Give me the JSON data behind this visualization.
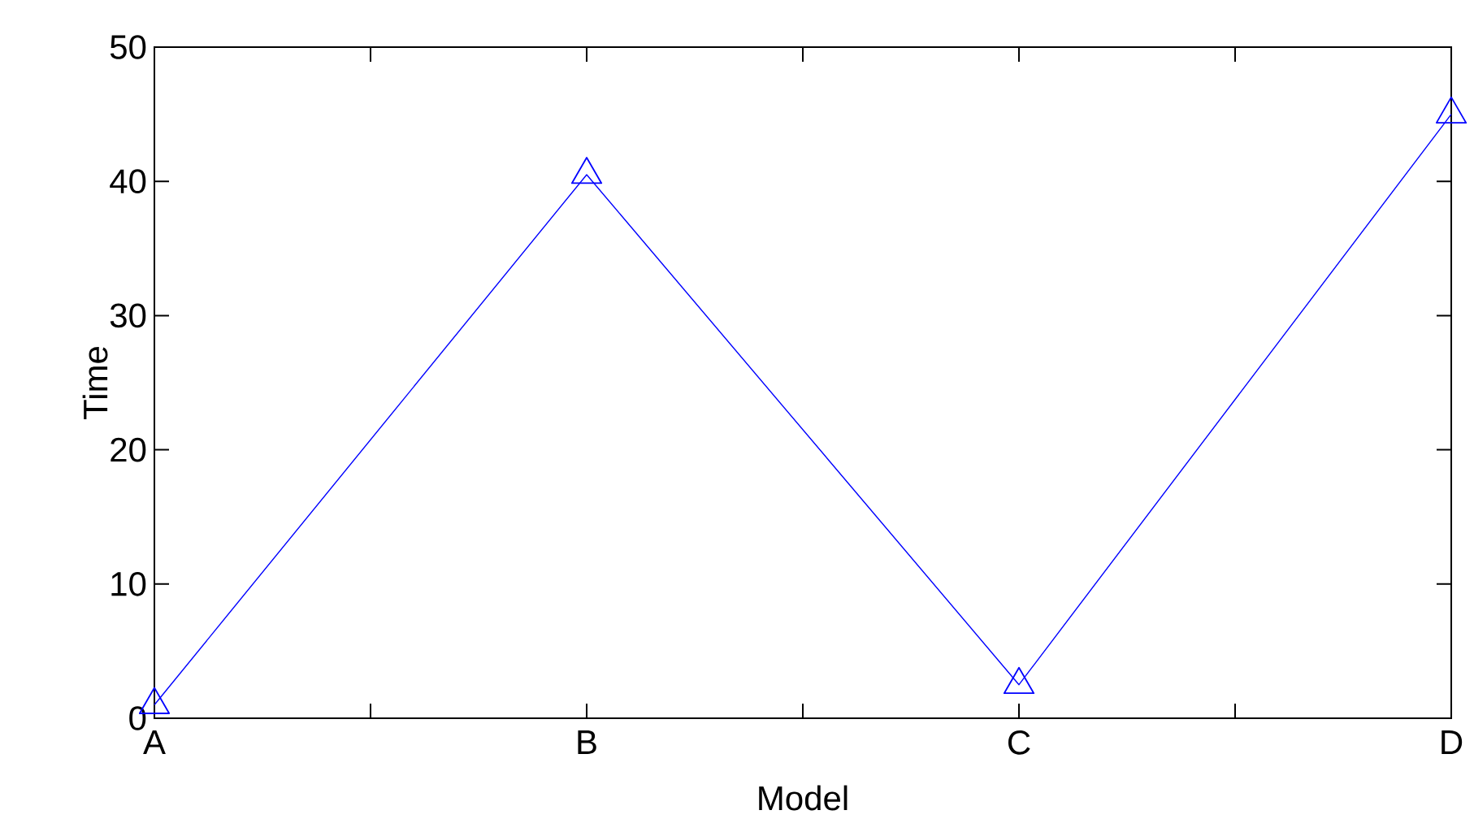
{
  "chart_data": {
    "type": "line",
    "xlabel": "Model",
    "ylabel": "Time",
    "categories": [
      "A",
      "B",
      "C",
      "D"
    ],
    "series": [
      {
        "color": "#0000ff",
        "values": [
          1,
          40.5,
          2.5,
          45
        ]
      }
    ],
    "ylim": [
      0,
      50
    ],
    "yticks": [
      0,
      10,
      20,
      30,
      40,
      50
    ],
    "marker": "triangle",
    "line_style": "solid"
  }
}
